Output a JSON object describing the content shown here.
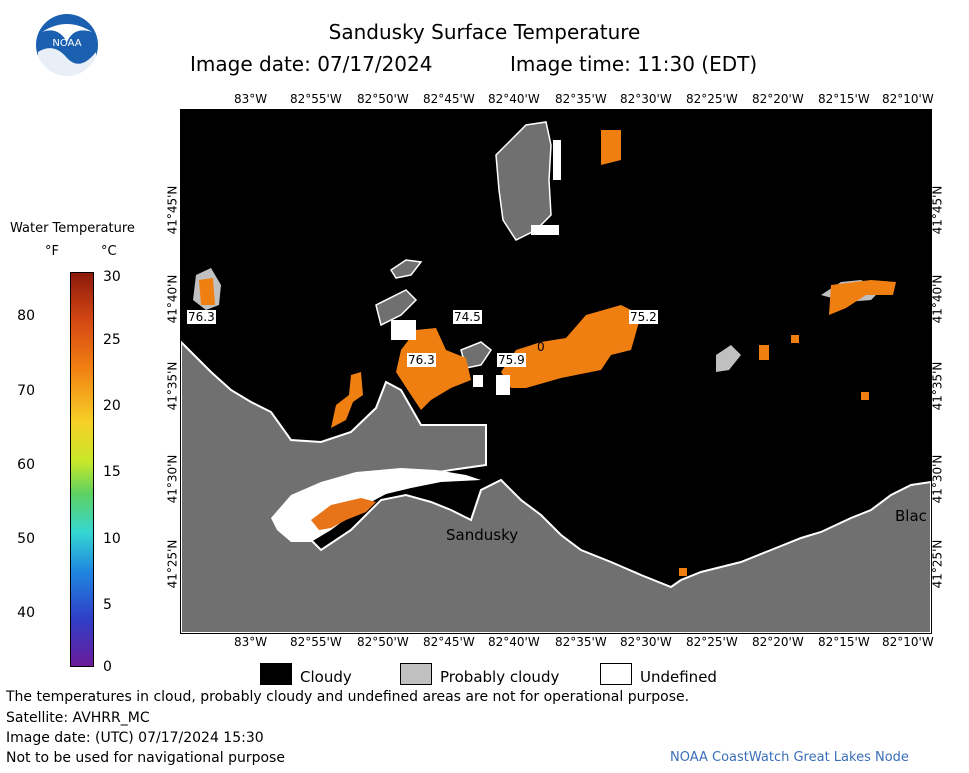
{
  "header": {
    "title": "Sandusky Surface Temperature",
    "image_date": "Image date: 07/17/2024",
    "image_time": "Image time: 11:30 (EDT)"
  },
  "logo": {
    "text": "NOAA"
  },
  "longitude_ticks": [
    "83°W",
    "82°55'W",
    "82°50'W",
    "82°45'W",
    "82°40'W",
    "82°35'W",
    "82°30'W",
    "82°25'W",
    "82°20'W",
    "82°15'W",
    "82°10'W"
  ],
  "latitude_ticks": [
    "41°45'N",
    "41°40'N",
    "41°35'N",
    "41°30'N",
    "41°25'N"
  ],
  "map": {
    "temperature_labels": [
      "76.3",
      "74.5",
      "75.2",
      "76.3",
      "75.9",
      "0"
    ],
    "place_labels": [
      "Sandusky",
      "Blac"
    ],
    "colors": {
      "cloudy": "#000000",
      "probably_cloudy": "#c0c0c0",
      "land": "#707070",
      "undefined": "#ffffff",
      "warm_water": "#f07f12"
    }
  },
  "legend": {
    "title": "Water Temperature",
    "unit_f": "°F",
    "unit_c": "°C",
    "fahrenheit_ticks": [
      "80",
      "70",
      "60",
      "50",
      "40"
    ],
    "celsius_ticks": [
      "30",
      "25",
      "20",
      "15",
      "10",
      "5",
      "0"
    ],
    "key": {
      "cloudy": "Cloudy",
      "probably_cloudy": "Probably cloudy",
      "undefined": "Undefined"
    }
  },
  "footer": {
    "disclaimer": "The temperatures in cloud, probably cloudy and undefined areas are not for operational purpose.",
    "satellite": "Satellite: AVHRR_MC",
    "utc_date": "Image date: (UTC) 07/17/2024  15:30",
    "navigation": "Not to be used for navigational purpose",
    "credit": "NOAA CoastWatch Great Lakes Node"
  }
}
